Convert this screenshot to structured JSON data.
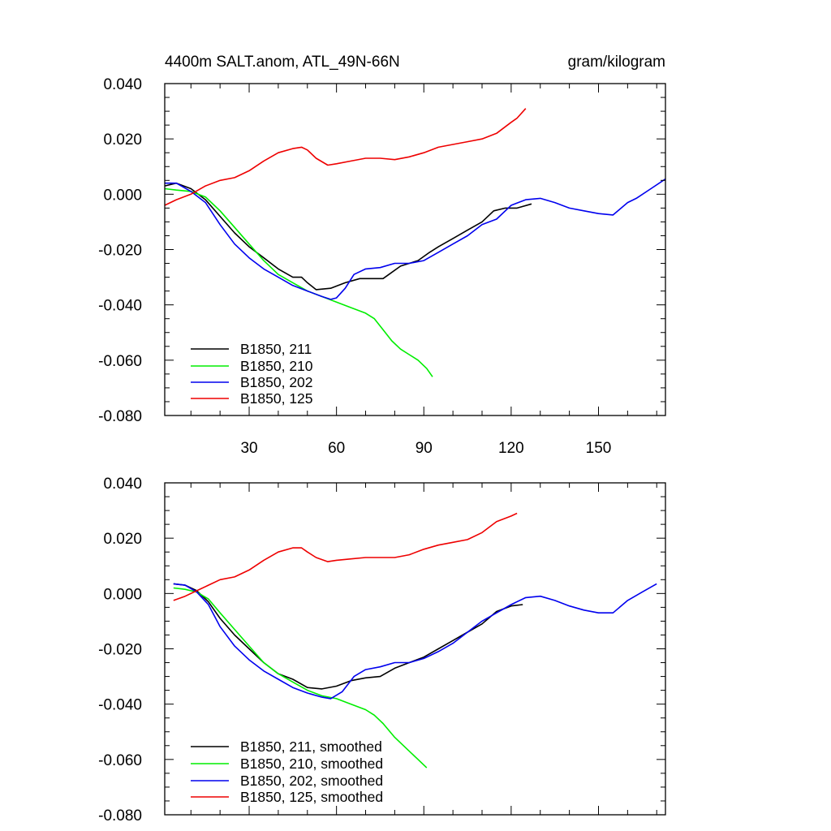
{
  "chart_data": [
    {
      "type": "line",
      "title": "4400m SALT.anom, ATL_49N-66N",
      "units_label": "gram/kilogram",
      "xlim": [
        1,
        173
      ],
      "ylim": [
        -0.08,
        0.04
      ],
      "x_ticks": [
        30,
        60,
        90,
        120,
        150
      ],
      "x_tick_labels": [
        "30",
        "60",
        "90",
        "120",
        "150"
      ],
      "y_ticks": [
        -0.08,
        -0.06,
        -0.04,
        -0.02,
        0.0,
        0.02,
        0.04
      ],
      "y_tick_labels": [
        "-0.080",
        "-0.060",
        "-0.040",
        "-0.020",
        "0.000",
        "0.020",
        "0.040"
      ],
      "legend": [
        "B1850, 211",
        "B1850, 210",
        "B1850, 202",
        "B1850, 125"
      ],
      "series": [
        {
          "name": "B1850, 211",
          "color": "#000000",
          "x": [
            1,
            5,
            10,
            15,
            20,
            25,
            30,
            35,
            40,
            45,
            48,
            50,
            53,
            58,
            63,
            68,
            73,
            76,
            78,
            82,
            88,
            92,
            95,
            100,
            105,
            110,
            114,
            118,
            122,
            127
          ],
          "y": [
            0.003,
            0.004,
            0.002,
            -0.002,
            -0.008,
            -0.014,
            -0.019,
            -0.023,
            -0.027,
            -0.03,
            -0.03,
            -0.032,
            -0.0345,
            -0.034,
            -0.032,
            -0.0305,
            -0.0305,
            -0.0305,
            -0.029,
            -0.026,
            -0.024,
            -0.021,
            -0.019,
            -0.016,
            -0.013,
            -0.01,
            -0.006,
            -0.005,
            -0.005,
            -0.0035
          ]
        },
        {
          "name": "B1850, 210",
          "color": "#00ee00",
          "x": [
            1,
            5,
            10,
            15,
            20,
            25,
            30,
            35,
            40,
            45,
            50,
            55,
            60,
            65,
            70,
            73,
            76,
            79,
            82,
            85,
            88,
            91,
            93
          ],
          "y": [
            0.002,
            0.0015,
            0.001,
            -0.001,
            -0.006,
            -0.012,
            -0.018,
            -0.024,
            -0.029,
            -0.032,
            -0.035,
            -0.037,
            -0.039,
            -0.041,
            -0.043,
            -0.045,
            -0.049,
            -0.053,
            -0.056,
            -0.058,
            -0.06,
            -0.063,
            -0.066
          ]
        },
        {
          "name": "B1850, 202",
          "color": "#0000ee",
          "x": [
            1,
            5,
            10,
            15,
            20,
            25,
            30,
            35,
            40,
            45,
            50,
            55,
            58,
            60,
            63,
            66,
            70,
            75,
            80,
            85,
            90,
            95,
            100,
            105,
            110,
            115,
            120,
            125,
            130,
            135,
            140,
            145,
            150,
            155,
            160,
            163,
            168,
            173
          ],
          "y": [
            0.004,
            0.004,
            0.001,
            -0.003,
            -0.011,
            -0.018,
            -0.023,
            -0.027,
            -0.03,
            -0.033,
            -0.035,
            -0.037,
            -0.038,
            -0.0375,
            -0.034,
            -0.029,
            -0.027,
            -0.0265,
            -0.025,
            -0.025,
            -0.024,
            -0.021,
            -0.018,
            -0.015,
            -0.011,
            -0.009,
            -0.004,
            -0.002,
            -0.0015,
            -0.003,
            -0.005,
            -0.006,
            -0.007,
            -0.0075,
            -0.003,
            -0.0015,
            0.002,
            0.0055
          ]
        },
        {
          "name": "B1850, 125",
          "color": "#ee0000",
          "x": [
            1,
            5,
            10,
            15,
            20,
            25,
            30,
            35,
            40,
            45,
            48,
            50,
            53,
            57,
            60,
            65,
            70,
            75,
            80,
            85,
            90,
            95,
            100,
            105,
            110,
            115,
            120,
            122,
            125
          ],
          "y": [
            -0.004,
            -0.002,
            0.0,
            0.003,
            0.005,
            0.006,
            0.0085,
            0.012,
            0.015,
            0.0165,
            0.017,
            0.016,
            0.013,
            0.0105,
            0.011,
            0.012,
            0.013,
            0.013,
            0.0125,
            0.0135,
            0.015,
            0.017,
            0.018,
            0.019,
            0.02,
            0.022,
            0.026,
            0.0275,
            0.031
          ]
        }
      ]
    },
    {
      "type": "line",
      "xlim": [
        1,
        173
      ],
      "ylim": [
        -0.08,
        0.04
      ],
      "x_ticks": [
        30,
        60,
        90,
        120,
        150
      ],
      "y_ticks": [
        -0.08,
        -0.06,
        -0.04,
        -0.02,
        0.0,
        0.02,
        0.04
      ],
      "y_tick_labels": [
        "-0.080",
        "-0.060",
        "-0.040",
        "-0.020",
        "0.000",
        "0.020",
        "0.040"
      ],
      "legend": [
        "B1850, 211, smoothed",
        "B1850, 210, smoothed",
        "B1850, 202, smoothed",
        "B1850, 125, smoothed"
      ],
      "series": [
        {
          "name": "B1850, 211, smoothed",
          "color": "#000000",
          "x": [
            4,
            8,
            12,
            16,
            20,
            25,
            30,
            35,
            40,
            45,
            50,
            55,
            60,
            65,
            70,
            75,
            80,
            85,
            90,
            95,
            100,
            105,
            110,
            115,
            120,
            124
          ],
          "y": [
            0.0035,
            0.003,
            0.001,
            -0.003,
            -0.009,
            -0.015,
            -0.02,
            -0.025,
            -0.029,
            -0.031,
            -0.034,
            -0.0345,
            -0.0335,
            -0.0315,
            -0.0305,
            -0.03,
            -0.027,
            -0.025,
            -0.023,
            -0.02,
            -0.017,
            -0.014,
            -0.011,
            -0.0065,
            -0.0045,
            -0.004
          ]
        },
        {
          "name": "B1850, 210, smoothed",
          "color": "#00ee00",
          "x": [
            4,
            8,
            12,
            16,
            20,
            25,
            30,
            35,
            40,
            45,
            50,
            55,
            60,
            65,
            70,
            73,
            76,
            80,
            84,
            88,
            91
          ],
          "y": [
            0.002,
            0.0015,
            0.0005,
            -0.002,
            -0.007,
            -0.013,
            -0.019,
            -0.025,
            -0.029,
            -0.032,
            -0.035,
            -0.037,
            -0.038,
            -0.04,
            -0.042,
            -0.044,
            -0.047,
            -0.052,
            -0.056,
            -0.06,
            -0.063
          ]
        },
        {
          "name": "B1850, 202, smoothed",
          "color": "#0000ee",
          "x": [
            4,
            8,
            12,
            16,
            20,
            25,
            30,
            35,
            40,
            45,
            50,
            55,
            58,
            62,
            66,
            70,
            75,
            80,
            85,
            90,
            95,
            100,
            105,
            110,
            115,
            120,
            125,
            130,
            135,
            140,
            145,
            150,
            155,
            160,
            165,
            170
          ],
          "y": [
            0.0035,
            0.003,
            0.0005,
            -0.004,
            -0.012,
            -0.019,
            -0.024,
            -0.028,
            -0.031,
            -0.034,
            -0.036,
            -0.0375,
            -0.038,
            -0.0355,
            -0.03,
            -0.0275,
            -0.0265,
            -0.025,
            -0.025,
            -0.0235,
            -0.021,
            -0.018,
            -0.014,
            -0.01,
            -0.007,
            -0.004,
            -0.0015,
            -0.001,
            -0.0025,
            -0.0045,
            -0.006,
            -0.007,
            -0.007,
            -0.0025,
            0.0005,
            0.0035
          ]
        },
        {
          "name": "B1850, 125, smoothed",
          "color": "#ee0000",
          "x": [
            4,
            8,
            12,
            16,
            20,
            25,
            30,
            35,
            40,
            45,
            48,
            50,
            53,
            57,
            60,
            65,
            70,
            75,
            80,
            85,
            90,
            95,
            100,
            105,
            110,
            115,
            120,
            122
          ],
          "y": [
            -0.0025,
            -0.001,
            0.001,
            0.003,
            0.005,
            0.006,
            0.0085,
            0.012,
            0.015,
            0.0165,
            0.0165,
            0.015,
            0.013,
            0.0115,
            0.012,
            0.0125,
            0.013,
            0.013,
            0.013,
            0.014,
            0.016,
            0.0175,
            0.0185,
            0.0195,
            0.022,
            0.026,
            0.028,
            0.029
          ]
        }
      ]
    }
  ]
}
